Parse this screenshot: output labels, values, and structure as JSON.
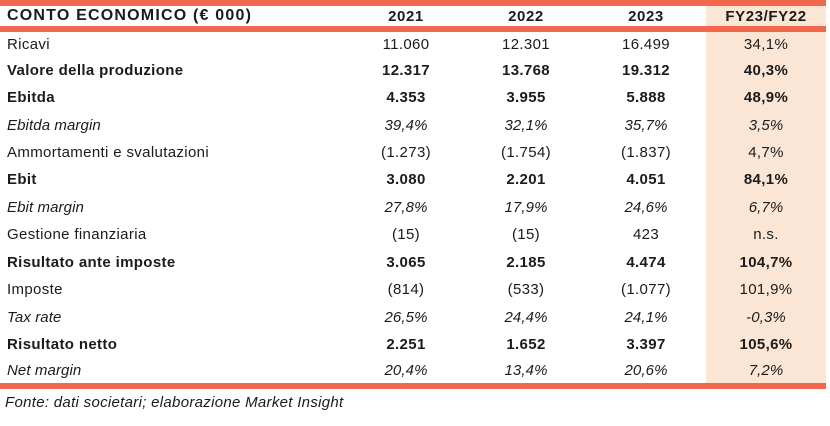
{
  "table": {
    "title": "CONTO ECONOMICO (€ 000)",
    "columns": [
      "2021",
      "2022",
      "2023",
      "FY23/FY22"
    ],
    "rows": [
      {
        "label": "Ricavi",
        "style": "regular",
        "values": [
          "11.060",
          "12.301",
          "16.499",
          "34,1%"
        ]
      },
      {
        "label": "Valore della produzione",
        "style": "bold",
        "values": [
          "12.317",
          "13.768",
          "19.312",
          "40,3%"
        ]
      },
      {
        "label": "Ebitda",
        "style": "bold",
        "values": [
          "4.353",
          "3.955",
          "5.888",
          "48,9%"
        ]
      },
      {
        "label": "Ebitda margin",
        "style": "italic",
        "values": [
          "39,4%",
          "32,1%",
          "35,7%",
          "3,5%"
        ]
      },
      {
        "label": "Ammortamenti e svalutazioni",
        "style": "regular",
        "values": [
          "(1.273)",
          "(1.754)",
          "(1.837)",
          "4,7%"
        ]
      },
      {
        "label": "Ebit",
        "style": "bold",
        "values": [
          "3.080",
          "2.201",
          "4.051",
          "84,1%"
        ]
      },
      {
        "label": "Ebit margin",
        "style": "italic",
        "values": [
          "27,8%",
          "17,9%",
          "24,6%",
          "6,7%"
        ]
      },
      {
        "label": "Gestione finanziaria",
        "style": "regular",
        "values": [
          "(15)",
          "(15)",
          "423",
          "n.s."
        ]
      },
      {
        "label": "Risultato ante imposte",
        "style": "bold",
        "values": [
          "3.065",
          "2.185",
          "4.474",
          "104,7%"
        ]
      },
      {
        "label": "Imposte",
        "style": "regular",
        "values": [
          "(814)",
          "(533)",
          "(1.077)",
          "101,9%"
        ]
      },
      {
        "label": "Tax rate",
        "style": "italic",
        "values": [
          "26,5%",
          "24,4%",
          "24,1%",
          "-0,3%"
        ]
      },
      {
        "label": "Risultato netto",
        "style": "bold",
        "values": [
          "2.251",
          "1.652",
          "3.397",
          "105,6%"
        ]
      },
      {
        "label": "Net margin",
        "style": "italic",
        "values": [
          "20,4%",
          "13,4%",
          "20,6%",
          "7,2%"
        ]
      }
    ],
    "footer": "Fonte: dati societari; elaborazione Market Insight"
  },
  "colors": {
    "accent": "#F2684C",
    "highlight_bg": "#FBE6D6",
    "text": "#1b1b1b"
  }
}
